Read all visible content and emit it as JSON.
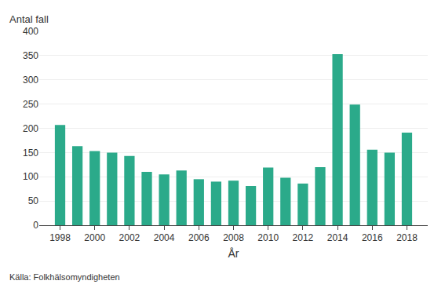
{
  "chart_data": {
    "type": "bar",
    "x": [
      1998,
      1999,
      2000,
      2001,
      2002,
      2003,
      2004,
      2005,
      2006,
      2007,
      2008,
      2009,
      2010,
      2011,
      2012,
      2013,
      2014,
      2015,
      2016,
      2017,
      2018
    ],
    "values": [
      207,
      163,
      153,
      150,
      143,
      110,
      105,
      113,
      95,
      90,
      92,
      81,
      119,
      98,
      86,
      120,
      353,
      249,
      156,
      150,
      191
    ],
    "color": "#2BAA8A",
    "ylabel": "Antal fall",
    "xlabel": "År",
    "xlim": [
      1996.8,
      2019.2
    ],
    "xticks": [
      1998,
      2000,
      2002,
      2004,
      2006,
      2008,
      2010,
      2012,
      2014,
      2016,
      2018
    ],
    "ylim": [
      0,
      400
    ],
    "yticks": [
      0,
      50,
      100,
      150,
      200,
      250,
      300,
      350,
      400
    ],
    "grid": true,
    "annotation": "Källa: Folkhälsomyndigheten"
  }
}
